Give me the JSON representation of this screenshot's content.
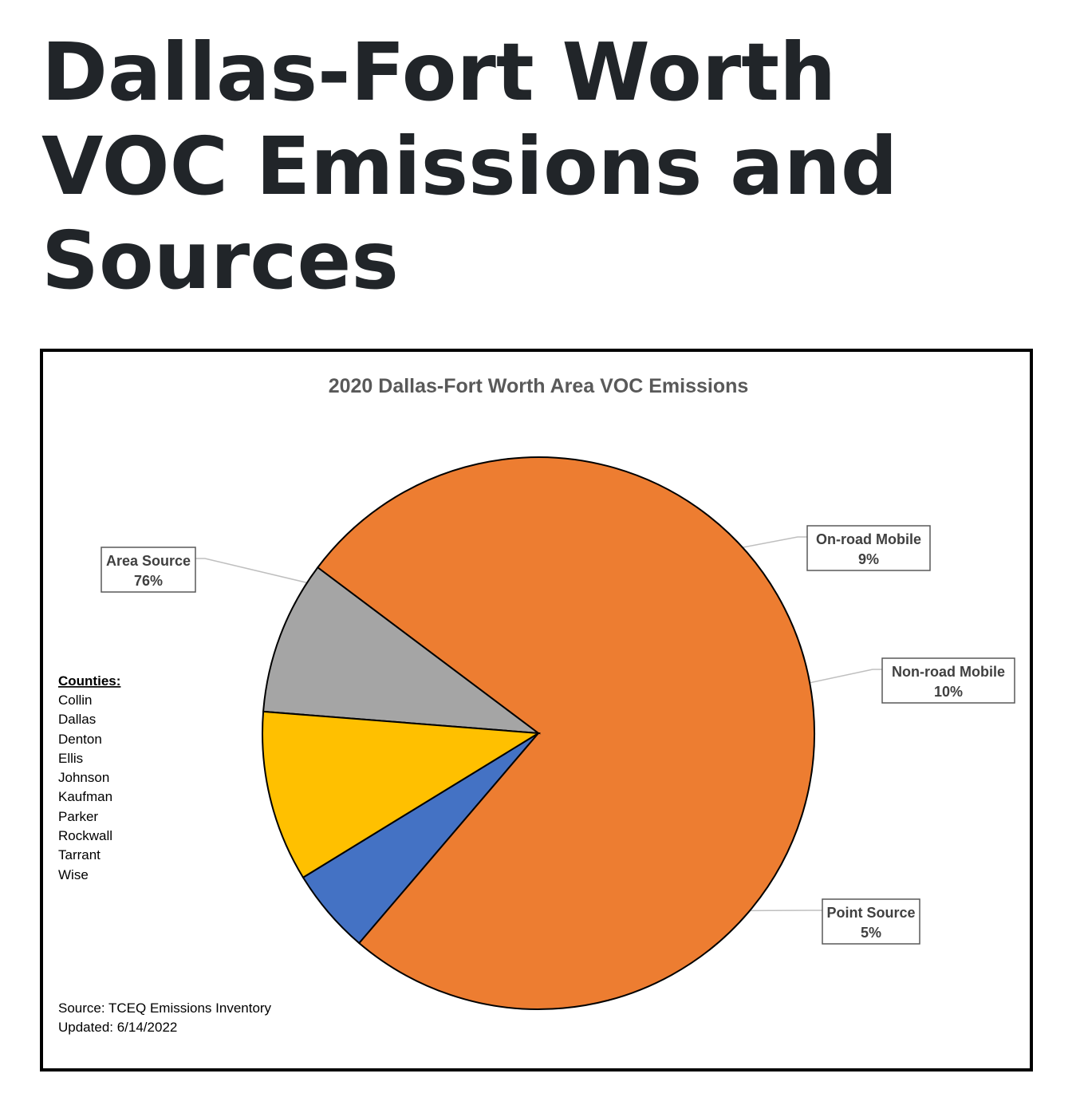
{
  "page": {
    "title_lines": [
      "Dallas-Fort Worth",
      "VOC Emissions and",
      "Sources"
    ]
  },
  "chart_data": {
    "type": "pie",
    "title": "2020 Dallas-Fort Worth Area VOC Emissions",
    "slices": [
      {
        "name": "Area Source",
        "value": 76,
        "label": "76%",
        "color": "#ED7D31"
      },
      {
        "name": "On-road Mobile",
        "value": 9,
        "label": "9%",
        "color": "#A5A5A5"
      },
      {
        "name": "Non-road Mobile",
        "value": 10,
        "label": "10%",
        "color": "#FFC000"
      },
      {
        "name": "Point Source",
        "value": 5,
        "label": "5%",
        "color": "#4472C4"
      }
    ],
    "start_slice": "Point Source",
    "direction": "counterclockwise",
    "counties": {
      "heading": "Counties:",
      "items": [
        "Collin",
        "Dallas",
        "Denton",
        "Ellis",
        "Johnson",
        "Kaufman",
        "Parker",
        "Rockwall",
        "Tarrant",
        "Wise"
      ]
    },
    "source_lines": [
      "Source: TCEQ Emissions Inventory",
      "Updated: 6/14/2022"
    ]
  }
}
